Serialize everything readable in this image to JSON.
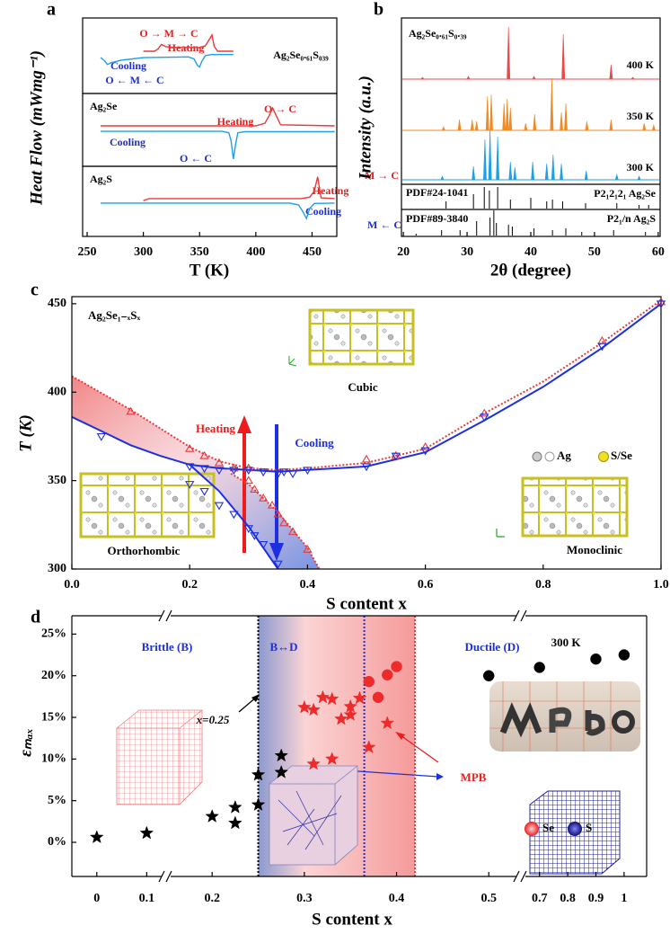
{
  "chart_data": [
    {
      "type": "line",
      "panel": "a",
      "xlabel": "T (K)",
      "ylabel": "Heat Flow (mWmg⁻¹)",
      "xlim": [
        246,
        472
      ],
      "xticks": [
        250,
        300,
        350,
        400,
        450
      ],
      "subplots": [
        {
          "title": "Ag₂Se₀.₆₁S₀₃₉",
          "annotations": [
            "O → M → C",
            "O ← M ← C"
          ],
          "ylim": [
            -10,
            10
          ],
          "series": [
            {
              "name": "Heating",
              "color": "#e83a3a",
              "x": [
                300,
                310,
                313,
                316,
                320,
                330,
                350,
                355,
                358,
                361,
                363,
                366,
                380
              ],
              "values": [
                1.2,
                1.2,
                1.8,
                3,
                2.4,
                2.2,
                2.2,
                2.6,
                4,
                5.5,
                2.5,
                1.2,
                1.2
              ]
            },
            {
              "name": "Cooling",
              "color": "#1ea0e6",
              "x": [
                262,
                265,
                268,
                272,
                280,
                300,
                340,
                345,
                348,
                350,
                352,
                355,
                360,
                380
              ],
              "values": [
                -0.5,
                -1.2,
                -2.3,
                -1.8,
                -1.2,
                -0.5,
                -0.3,
                -0.8,
                -2.5,
                -3,
                -1.5,
                0,
                0.3,
                0.3
              ]
            }
          ]
        },
        {
          "title": "Ag₂Se",
          "annotations": [
            "O → C",
            "O ← C"
          ],
          "ylim": [
            -10,
            10
          ],
          "series": [
            {
              "name": "Heating",
              "color": "#e83a3a",
              "x": [
                262,
                400,
                408,
                412,
                415,
                418,
                422,
                470
              ],
              "values": [
                1.1,
                1.1,
                1.8,
                4,
                6,
                4,
                1.4,
                1.1
              ]
            },
            {
              "name": "Cooling",
              "color": "#1ea0e6",
              "x": [
                262,
                370,
                376,
                378,
                380,
                382,
                384,
                390,
                470
              ],
              "values": [
                -0.4,
                -0.4,
                -0.8,
                -3,
                -8,
                -4,
                -0.8,
                -0.5,
                -0.5
              ]
            }
          ]
        },
        {
          "title": "Ag₂S",
          "annotations": [
            "M → C",
            "M ← C"
          ],
          "ylim": [
            -10,
            10
          ],
          "series": [
            {
              "name": "Heating",
              "color": "#e83a3a",
              "x": [
                300,
                305,
                440,
                448,
                452,
                455,
                458,
                470
              ],
              "values": [
                0.2,
                0.8,
                0.8,
                1.2,
                3,
                7,
                1,
                0.8
              ]
            },
            {
              "name": "Cooling",
              "color": "#1ea0e6",
              "x": [
                262,
                430,
                438,
                442,
                445,
                448,
                452,
                470
              ],
              "values": [
                -0.5,
                -0.5,
                -1,
                -3,
                -4.9,
                -2,
                -0.6,
                -0.5
              ]
            }
          ]
        }
      ]
    },
    {
      "type": "spectrum",
      "panel": "b",
      "title": "Ag₂Se₀.₆₁S₀.₃₉",
      "xlabel": "2θ (degree)",
      "ylabel": "Intensity (a.u.)",
      "xlim": [
        19.7,
        60.3
      ],
      "xticks": [
        20,
        30,
        40,
        50,
        60
      ],
      "series": [
        {
          "name": "400 K",
          "color": "#e84a4a",
          "x": [
            23,
            30.2,
            36.5,
            40.5,
            45.1,
            52.6,
            56
          ],
          "values": [
            2,
            3,
            58,
            3,
            50,
            16,
            2
          ]
        },
        {
          "name": "350 K",
          "color": "#f08a24",
          "x": [
            26.3,
            28.8,
            30.8,
            31.5,
            33.2,
            33.8,
            35.8,
            36.3,
            36.8,
            39.2,
            40.6,
            43.3,
            44.8,
            45.5,
            48.8,
            52.6,
            57.8,
            59.3
          ],
          "values": [
            4,
            12,
            12,
            10,
            38,
            40,
            30,
            35,
            25,
            8,
            18,
            58,
            20,
            30,
            10,
            12,
            8,
            6
          ]
        },
        {
          "name": "300 K",
          "color": "#1ea0e6",
          "x": [
            26.1,
            31,
            32.8,
            33.6,
            34.8,
            36.8,
            37.5,
            40.3,
            42.5,
            43.5,
            44.8,
            48.7,
            53.5,
            57
          ],
          "values": [
            4,
            15,
            45,
            55,
            48,
            20,
            14,
            20,
            18,
            28,
            18,
            10,
            6,
            4
          ]
        }
      ],
      "references": [
        {
          "name": "PDF#24-1041",
          "phase": "P2₁2₁2₁ Ag₂Se",
          "color": "#000000",
          "x": [
            26.7,
            31,
            32.7,
            33.5,
            34.8,
            36.8,
            40,
            42.5,
            43.4,
            45,
            48.6,
            53.5,
            57,
            58.5
          ],
          "values": [
            8,
            16,
            24,
            20,
            24,
            10,
            12,
            8,
            10,
            8,
            6,
            6,
            4,
            4
          ]
        },
        {
          "name": "PDF#89-3840",
          "phase": "P2₁/n  Ag₂S",
          "color": "#000000",
          "x": [
            22,
            26,
            28.9,
            31.5,
            33.6,
            34.2,
            34.6,
            36.5,
            37.1,
            40.5,
            43.4,
            45.5,
            48,
            53,
            58
          ],
          "values": [
            2,
            6,
            6,
            16,
            20,
            28,
            14,
            12,
            10,
            8,
            6,
            8,
            4,
            6,
            4
          ]
        }
      ]
    },
    {
      "type": "scatter",
      "panel": "c",
      "title": "Ag₂Se₁₋ₓSₓ",
      "xlabel": "S content x",
      "ylabel": "T (K)",
      "xlim": [
        0,
        1
      ],
      "xticks": [
        {
          "value": 0,
          "label": "0.0"
        },
        0.2,
        0.4,
        0.6,
        0.8,
        {
          "value": 1,
          "label": "1.0"
        }
      ],
      "ylim": [
        300,
        454
      ],
      "yticks": [
        300,
        350,
        400,
        450
      ],
      "regions": [
        "Cubic",
        "Orthorhombic",
        "Monoclinic"
      ],
      "atoms": [
        "Ag",
        "S/Se"
      ],
      "series": [
        {
          "name": "Heating",
          "color": "#e83a3a",
          "marker": "triangle-up",
          "filled": false,
          "x": [
            0.1,
            0.2,
            0.225,
            0.25,
            0.275,
            0.3,
            0.3,
            0.31,
            0.325,
            0.34,
            0.35,
            0.36,
            0.375,
            0.4,
            0.5,
            0.55,
            0.6,
            0.7,
            0.9,
            1.0
          ],
          "values": [
            389,
            368,
            364,
            360,
            357,
            357,
            350,
            345,
            340,
            336,
            331,
            326,
            321,
            311,
            362,
            364,
            369,
            388,
            429,
            451
          ]
        },
        {
          "name": "Cooling",
          "color": "#1d2fe0",
          "marker": "triangle-down",
          "filled": false,
          "x": [
            0.05,
            0.2,
            0.225,
            0.25,
            0.275,
            0.3,
            0.325,
            0.35,
            0.36,
            0.375,
            0.4,
            0.5,
            0.55,
            0.6,
            0.7,
            0.9,
            1.0,
            0.2,
            0.225,
            0.25,
            0.275,
            0.3,
            0.31,
            0.325,
            0.35
          ],
          "values": [
            375,
            358,
            357,
            356,
            356,
            356,
            355,
            354,
            355,
            354,
            356,
            358,
            364,
            367,
            386,
            426,
            450,
            348,
            344,
            336,
            331,
            323,
            319,
            314,
            303
          ]
        }
      ],
      "fits": [
        {
          "color": "#e83a3a",
          "linestyle": "dotted",
          "x": [
            0,
            0.1,
            0.2,
            0.25,
            0.3,
            0.35,
            0.4,
            0.5,
            0.6,
            0.7,
            0.8,
            0.9,
            1.0
          ],
          "values": [
            409,
            390,
            369,
            361,
            357,
            356,
            357,
            360,
            368,
            388,
            406,
            428,
            452
          ]
        },
        {
          "color": "#e83a3a",
          "linestyle": "dotted",
          "x": [
            0.27,
            0.3,
            0.35,
            0.4,
            0.42
          ],
          "values": [
            354,
            348,
            332,
            312,
            300
          ]
        },
        {
          "color": "#1d2fe0",
          "linestyle": "solid",
          "x": [
            0,
            0.05,
            0.1,
            0.15,
            0.2,
            0.25,
            0.3,
            0.35,
            0.4,
            0.5,
            0.6,
            0.7,
            0.8,
            0.9,
            1.0
          ],
          "values": [
            386,
            378,
            370,
            364,
            359,
            357,
            356,
            355,
            356,
            358,
            366,
            384,
            403,
            425,
            450
          ]
        },
        {
          "color": "#1d2fe0",
          "linestyle": "solid",
          "x": [
            0.2,
            0.25,
            0.3,
            0.35
          ],
          "values": [
            359,
            344,
            324,
            300
          ]
        }
      ]
    },
    {
      "type": "scatter",
      "panel": "d",
      "xlabel": "S content x",
      "ylabel": "εₘₐₓ",
      "xlim": [
        [
          -0.05,
          0.13
        ],
        [
          0.155,
          0.53
        ],
        [
          0.65,
          1.08
        ]
      ],
      "xticks": [
        0,
        0.1,
        0.2,
        0.3,
        0.4,
        0.5,
        0.7,
        0.8,
        0.9,
        1
      ],
      "ylim": [
        -4.1,
        27.2
      ],
      "yticks": [
        {
          "value": 0,
          "label": "0%"
        },
        {
          "value": 5,
          "label": "5%"
        },
        {
          "value": 10,
          "label": "10%"
        },
        {
          "value": 15,
          "label": "15%"
        },
        {
          "value": 20,
          "label": "20%"
        },
        {
          "value": 25,
          "label": "25%"
        }
      ],
      "annotations": {
        "brittle": "Brittle (B)",
        "transition": "B↔D",
        "ductile": "Ductile (D)",
        "temperature": "300 K",
        "boundary": "x=0.25",
        "mpb": "MPB"
      },
      "atoms": [
        "Se",
        "S"
      ],
      "vlines": [
        {
          "x": 0.25,
          "color": "#000000",
          "linestyle": "dotted"
        },
        {
          "x": 0.365,
          "color": "#1d2fe0",
          "linestyle": "dotted"
        },
        {
          "x": 0.42,
          "color": "#e83a3a",
          "linestyle": "dotted"
        }
      ],
      "series": [
        {
          "color": "#000000",
          "marker": "star",
          "filled": true,
          "x": [
            0,
            0.1,
            0.2,
            0.225,
            0.225,
            0.25,
            0.25,
            0.275,
            0.275
          ],
          "values": [
            0.6,
            1.1,
            3.1,
            4.2,
            2.3,
            4.5,
            8.1,
            8.4,
            10.4
          ]
        },
        {
          "color": "#ee2a2a",
          "marker": "star",
          "filled": true,
          "x": [
            0.3,
            0.31,
            0.32,
            0.33,
            0.34,
            0.35,
            0.35,
            0.36,
            0.31,
            0.33,
            0.39,
            0.37
          ],
          "values": [
            16.2,
            15.9,
            17.4,
            17.2,
            14.8,
            15.3,
            16.3,
            17.3,
            9.4,
            10.0,
            14.3,
            11.4
          ]
        },
        {
          "color": "#ee2a2a",
          "marker": "circle",
          "filled": true,
          "x": [
            0.37,
            0.38,
            0.39,
            0.4
          ],
          "values": [
            19.3,
            17.4,
            20.1,
            21.1
          ]
        },
        {
          "color": "#000000",
          "marker": "circle",
          "filled": true,
          "x": [
            0.5,
            0.7,
            0.9,
            1
          ],
          "values": [
            20.0,
            21.0,
            22.0,
            22.5
          ]
        }
      ]
    }
  ]
}
